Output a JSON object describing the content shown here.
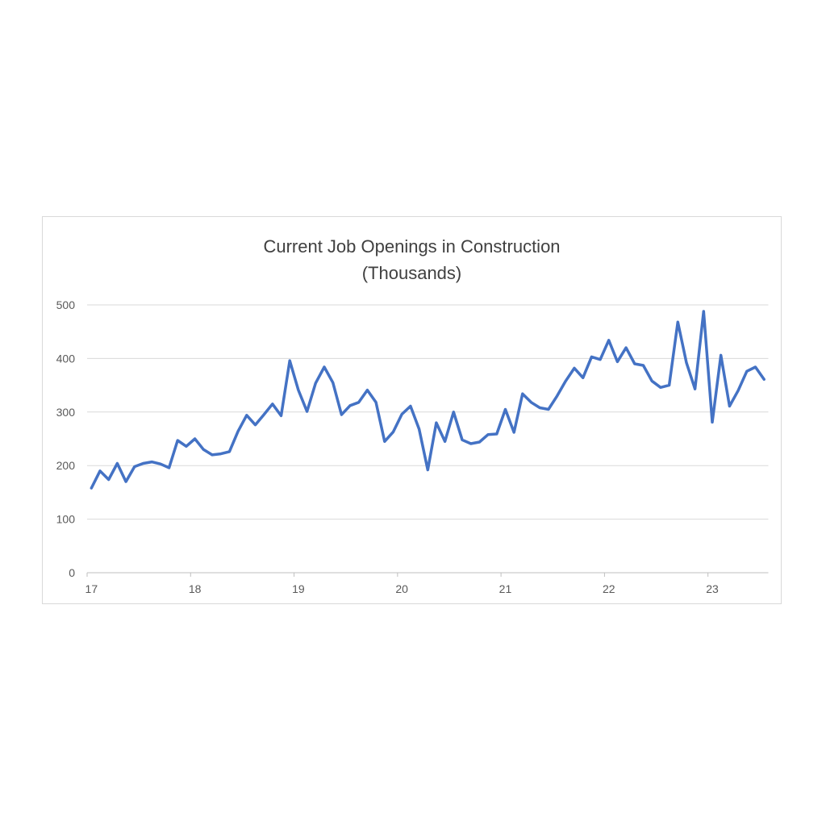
{
  "chart": {
    "title_line1": "Current Job Openings in Construction",
    "title_line2": "(Thousands)",
    "colors": {
      "line": "#4472C4",
      "gridline": "#D9D9D9",
      "axis_line": "#BFBFBF",
      "tick_label": "#595959",
      "title": "#404040",
      "border": "#D9D9D9"
    },
    "y_axis": {
      "tick_labels": [
        "0",
        "100",
        "200",
        "300",
        "400",
        "500"
      ],
      "min": 0,
      "max": 500,
      "step": 100
    },
    "x_axis": {
      "tick_labels": [
        "17",
        "18",
        "19",
        "20",
        "21",
        "22",
        "23"
      ]
    }
  },
  "chart_data": {
    "type": "line",
    "title": "Current Job Openings in Construction (Thousands)",
    "xlabel": "",
    "ylabel": "",
    "x_start": "2017-01",
    "x_end": "2023-07",
    "frequency": "monthly",
    "x_tick_labels": [
      "17",
      "18",
      "19",
      "20",
      "21",
      "22",
      "23"
    ],
    "ylim": [
      0,
      500
    ],
    "y_tick_step": 100,
    "grid": true,
    "legend": false,
    "series": [
      {
        "name": "Construction job openings (thousands)",
        "color": "#4472C4",
        "values": [
          158,
          190,
          174,
          204,
          170,
          198,
          204,
          207,
          203,
          196,
          247,
          236,
          250,
          230,
          220,
          222,
          226,
          264,
          294,
          276,
          295,
          315,
          293,
          396,
          341,
          301,
          354,
          384,
          355,
          295,
          312,
          318,
          341,
          318,
          245,
          263,
          296,
          311,
          268,
          192,
          280,
          245,
          300,
          248,
          241,
          244,
          258,
          259,
          305,
          262,
          334,
          318,
          308,
          305,
          330,
          358,
          382,
          364,
          403,
          398,
          434,
          394,
          420,
          390,
          387,
          358,
          346,
          350,
          468,
          392,
          343,
          488,
          281,
          406,
          311,
          340,
          376,
          384,
          361
        ]
      }
    ]
  }
}
